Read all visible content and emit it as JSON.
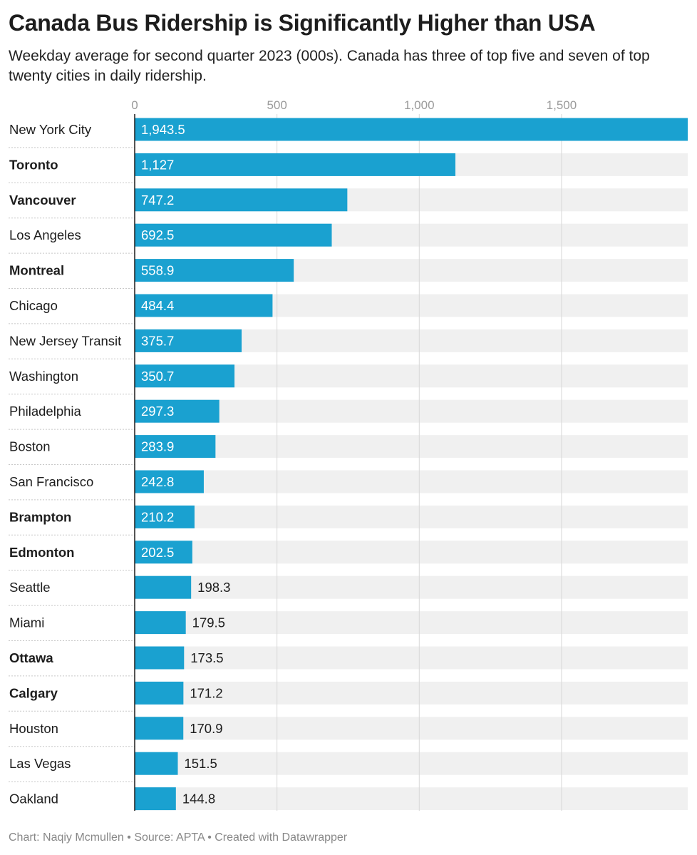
{
  "title": "Canada Bus Ridership is Significantly Higher than USA",
  "subtitle": "Weekday average for second quarter 2023 (000s). Canada has three of top five and seven of top twenty cities in daily ridership.",
  "footer": {
    "chart_credit": "Chart: Naqiy Mcmullen",
    "source": "Source: APTA",
    "tool": "Created with Datawrapper",
    "separator": " • "
  },
  "colors": {
    "bar": "#1aa1d0",
    "bar_background": "#f0f0f0",
    "gridline": "#d8d8d8",
    "row_divider": "#c8c8c8"
  },
  "chart_data": {
    "type": "bar",
    "orientation": "horizontal",
    "title": "Canada Bus Ridership is Significantly Higher than USA",
    "xlabel": "",
    "ylabel": "",
    "xlim": [
      0,
      1943.5
    ],
    "ticks": [
      0,
      500,
      1000,
      1500
    ],
    "tick_labels": [
      "0",
      "500",
      "1,000",
      "1,500"
    ],
    "categories": [
      "New York City",
      "Toronto",
      "Vancouver",
      "Los Angeles",
      "Montreal",
      "Chicago",
      "New Jersey Transit",
      "Washington",
      "Philadelphia",
      "Boston",
      "San Francisco",
      "Brampton",
      "Edmonton",
      "Seattle",
      "Miami",
      "Ottawa",
      "Calgary",
      "Houston",
      "Las Vegas",
      "Oakland"
    ],
    "values": [
      1943.5,
      1127,
      747.2,
      692.5,
      558.9,
      484.4,
      375.7,
      350.7,
      297.3,
      283.9,
      242.8,
      210.2,
      202.5,
      198.3,
      179.5,
      173.5,
      171.2,
      170.9,
      151.5,
      144.8
    ],
    "value_labels": [
      "1,943.5",
      "1,127",
      "747.2",
      "692.5",
      "558.9",
      "484.4",
      "375.7",
      "350.7",
      "297.3",
      "283.9",
      "242.8",
      "210.2",
      "202.5",
      "198.3",
      "179.5",
      "173.5",
      "171.2",
      "170.9",
      "151.5",
      "144.8"
    ],
    "canadian": [
      false,
      true,
      true,
      false,
      true,
      false,
      false,
      false,
      false,
      false,
      false,
      true,
      true,
      false,
      false,
      true,
      true,
      false,
      false,
      false
    ]
  }
}
